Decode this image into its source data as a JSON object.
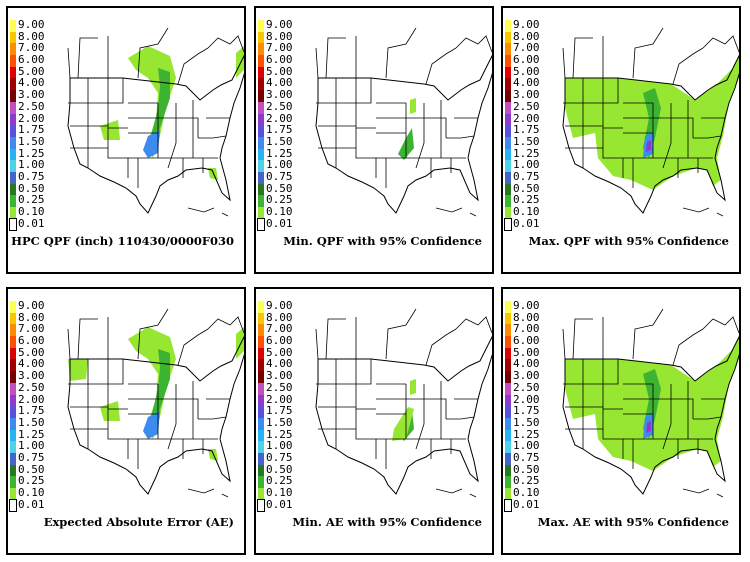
{
  "legend": {
    "labels": [
      "9.00",
      "8.00",
      "7.00",
      "6.00",
      "5.00",
      "4.00",
      "3.00",
      "2.50",
      "2.00",
      "1.75",
      "1.50",
      "1.25",
      "1.00",
      "0.75",
      "0.50",
      "0.25",
      "0.10",
      "0.01"
    ],
    "colors": [
      "#ffff50",
      "#f5c800",
      "#ff8c00",
      "#ff5000",
      "#dc0000",
      "#a00000",
      "#780000",
      "#c050c0",
      "#8c3cc8",
      "#5a50dc",
      "#3c8cf0",
      "#28b4f0",
      "#50d2e6",
      "#4664c8",
      "#287820",
      "#3cb432",
      "#96e632",
      "#ffffff"
    ]
  },
  "panels": [
    {
      "caption": "HPC QPF (inch) 110430/0000F030",
      "precip": "qpf"
    },
    {
      "caption": "Min. QPF with 95% Confidence",
      "precip": "min"
    },
    {
      "caption": "Max. QPF with 95% Confidence",
      "precip": "max"
    },
    {
      "caption": "Expected Absolute Error (AE)",
      "precip": "ae"
    },
    {
      "caption": "Min. AE with 95% Confidence",
      "precip": "aemin"
    },
    {
      "caption": "Max. AE with 95% Confidence",
      "precip": "max"
    }
  ],
  "colors": {
    "frame": "#000000",
    "light_green": "#96e632",
    "green": "#3cb432",
    "blue": "#3c8cf0",
    "purple": "#8c3cc8"
  }
}
